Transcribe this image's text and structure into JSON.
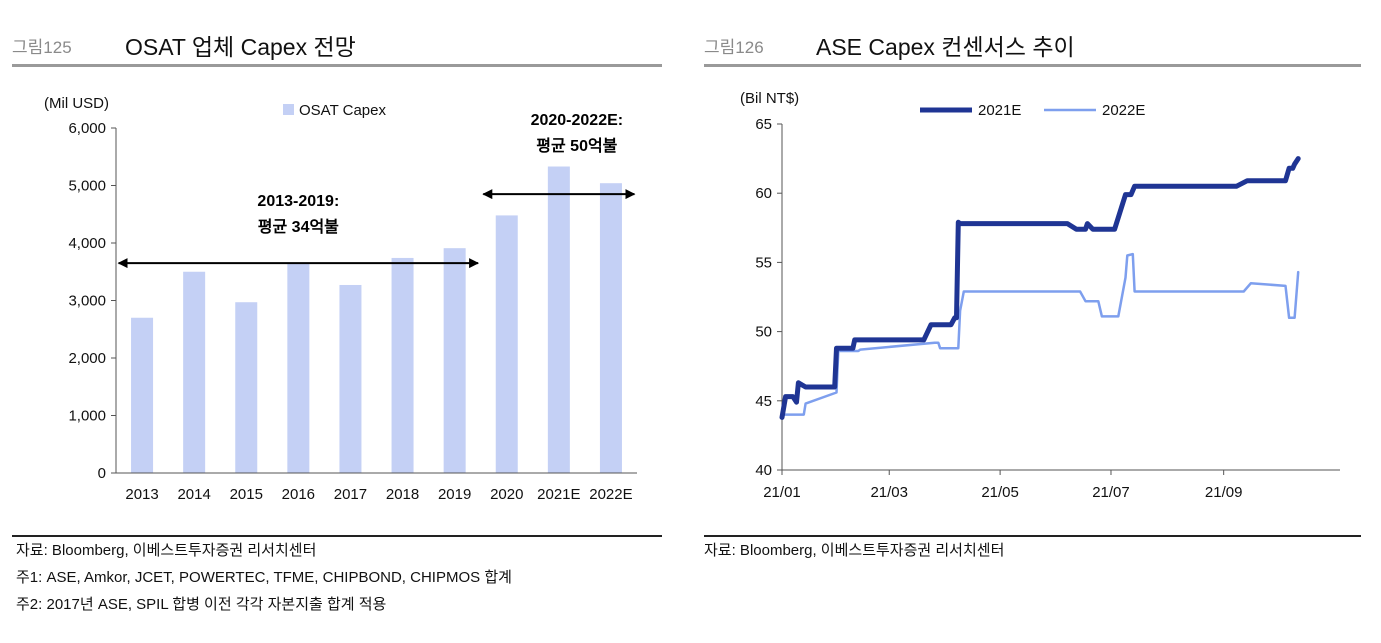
{
  "figures": [
    {
      "number": "그림125",
      "title": "OSAT 업체 Capex 전망",
      "notes": [
        "자료: Bloomberg, 이베스트투자증권 리서치센터",
        "주1: ASE, Amkor, JCET, POWERTEC, TFME, CHIPBOND, CHIPMOS 합계",
        "주2: 2017년 ASE, SPIL 합병 이전 각각 자본지출 합계 적용"
      ]
    },
    {
      "number": "그림126",
      "title": "ASE Capex 컨센서스 추이",
      "notes": [
        "자료: Bloomberg, 이베스트투자증권 리서치센터"
      ]
    }
  ],
  "chart_data": [
    {
      "type": "bar",
      "ylabel": "(Mil USD)",
      "ylim": [
        0,
        6000
      ],
      "yticks": [
        "0",
        "1,000",
        "2,000",
        "3,000",
        "4,000",
        "5,000",
        "6,000"
      ],
      "categories": [
        "2013",
        "2014",
        "2015",
        "2016",
        "2017",
        "2018",
        "2019",
        "2020",
        "2021E",
        "2022E"
      ],
      "series": [
        {
          "name": "OSAT Capex",
          "values": [
            2700,
            3500,
            2970,
            3660,
            3270,
            3740,
            3910,
            4480,
            5330,
            5040
          ],
          "color": "#c4d0f5"
        }
      ],
      "legend": "top-center",
      "annotations": [
        {
          "text": [
            "2013-2019:",
            "평균 34억불"
          ],
          "from": "2013",
          "to": "2019",
          "arrow_at": 3650
        },
        {
          "text": [
            "2020-2022E:",
            "평균 50억불"
          ],
          "from": "2020",
          "to": "2022E",
          "arrow_at": 4850
        }
      ]
    },
    {
      "type": "line",
      "ylabel": "(Bil NT$)",
      "ylim": [
        40,
        65
      ],
      "yticks": [
        "40",
        "45",
        "50",
        "55",
        "60",
        "65"
      ],
      "xlim": [
        0,
        307
      ],
      "xticks": [
        {
          "label": "21/01",
          "x": 0
        },
        {
          "label": "21/03",
          "x": 59
        },
        {
          "label": "21/05",
          "x": 120
        },
        {
          "label": "21/07",
          "x": 181
        },
        {
          "label": "21/09",
          "x": 243
        }
      ],
      "legend": "top-center",
      "series": [
        {
          "name": "2021E",
          "color": "#1f3594",
          "points": [
            [
              0,
              43.8
            ],
            [
              2,
              45.3
            ],
            [
              6,
              45.3
            ],
            [
              8,
              44.9
            ],
            [
              9,
              46.3
            ],
            [
              13,
              46.0
            ],
            [
              29,
              46.0
            ],
            [
              30,
              48.8
            ],
            [
              39,
              48.8
            ],
            [
              40,
              49.4
            ],
            [
              78,
              49.4
            ],
            [
              82,
              50.5
            ],
            [
              93,
              50.5
            ],
            [
              95,
              51.0
            ],
            [
              96,
              51.0
            ],
            [
              97,
              57.9
            ],
            [
              98,
              57.8
            ],
            [
              157,
              57.8
            ],
            [
              162,
              57.4
            ],
            [
              167,
              57.4
            ],
            [
              168,
              57.8
            ],
            [
              171,
              57.4
            ],
            [
              183,
              57.4
            ],
            [
              189,
              59.9
            ],
            [
              192,
              59.9
            ],
            [
              194,
              60.5
            ],
            [
              250,
              60.5
            ],
            [
              256,
              60.9
            ],
            [
              277,
              60.9
            ],
            [
              279,
              61.8
            ],
            [
              281,
              61.8
            ],
            [
              282,
              62.1
            ],
            [
              284,
              62.5
            ]
          ]
        },
        {
          "name": "2022E",
          "color": "#7e9fee",
          "points": [
            [
              0,
              44.0
            ],
            [
              12,
              44.0
            ],
            [
              13,
              44.8
            ],
            [
              30,
              45.6
            ],
            [
              31,
              48.6
            ],
            [
              42,
              48.6
            ],
            [
              43,
              48.7
            ],
            [
              84,
              49.2
            ],
            [
              86,
              49.2
            ],
            [
              87,
              48.8
            ],
            [
              97,
              48.8
            ],
            [
              98,
              51.5
            ],
            [
              100,
              52.9
            ],
            [
              164,
              52.9
            ],
            [
              167,
              52.2
            ],
            [
              174,
              52.2
            ],
            [
              176,
              51.1
            ],
            [
              185,
              51.1
            ],
            [
              189,
              53.9
            ],
            [
              190,
              55.5
            ],
            [
              193,
              55.6
            ],
            [
              194,
              52.9
            ],
            [
              254,
              52.9
            ],
            [
              258,
              53.5
            ],
            [
              277,
              53.3
            ],
            [
              279,
              51.0
            ],
            [
              282,
              51.0
            ],
            [
              284,
              54.3
            ]
          ]
        }
      ]
    }
  ]
}
